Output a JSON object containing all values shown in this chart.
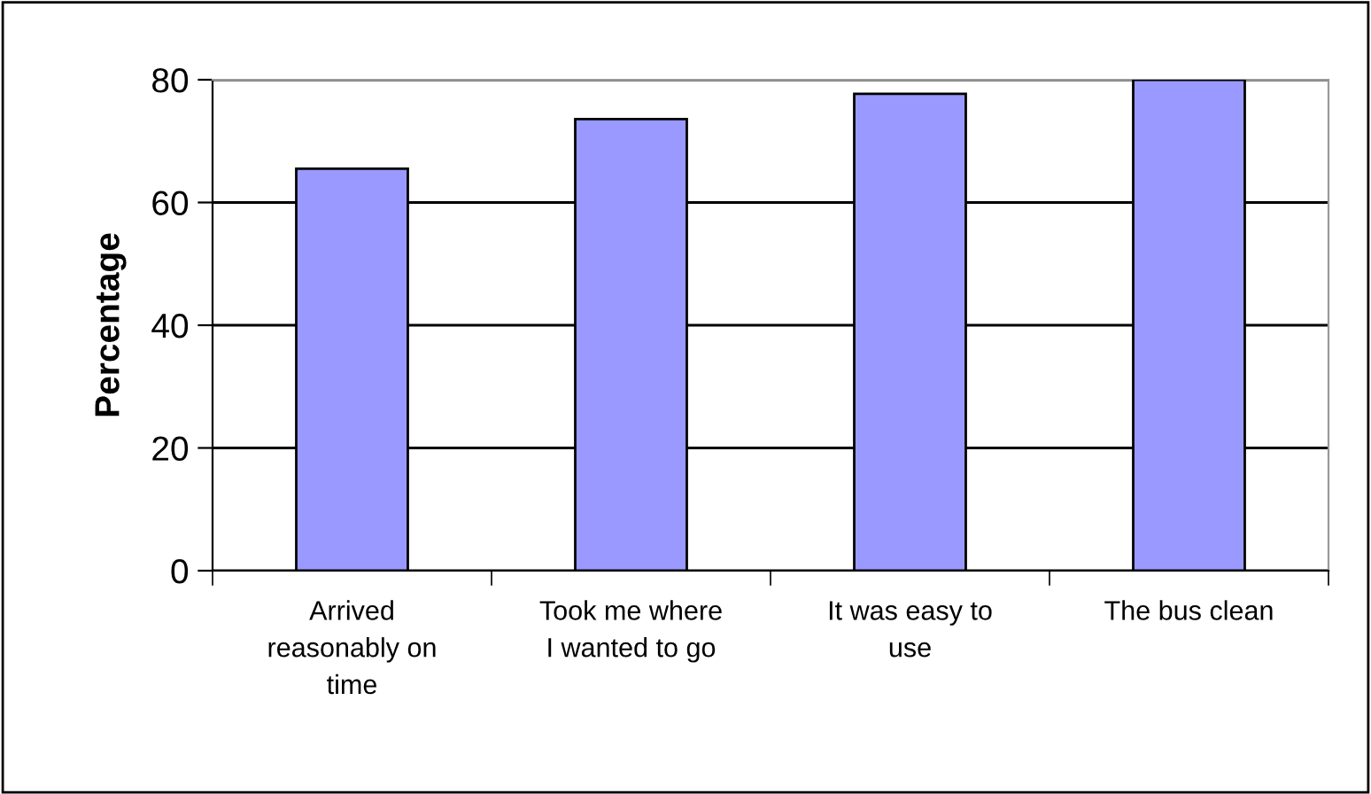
{
  "chart_data": {
    "type": "bar",
    "ylabel": "Percentage",
    "categories": [
      "Arrived\nreasonably on\ntime",
      "Took me where\nI wanted to go",
      "It was easy to\nuse",
      "The bus clean"
    ],
    "values": [
      65.5,
      73.6,
      77.7,
      80
    ],
    "color": "#9999ff",
    "ylim": [
      0,
      80
    ],
    "yticks": [
      0,
      20,
      40,
      60,
      80
    ],
    "grid": "y"
  }
}
